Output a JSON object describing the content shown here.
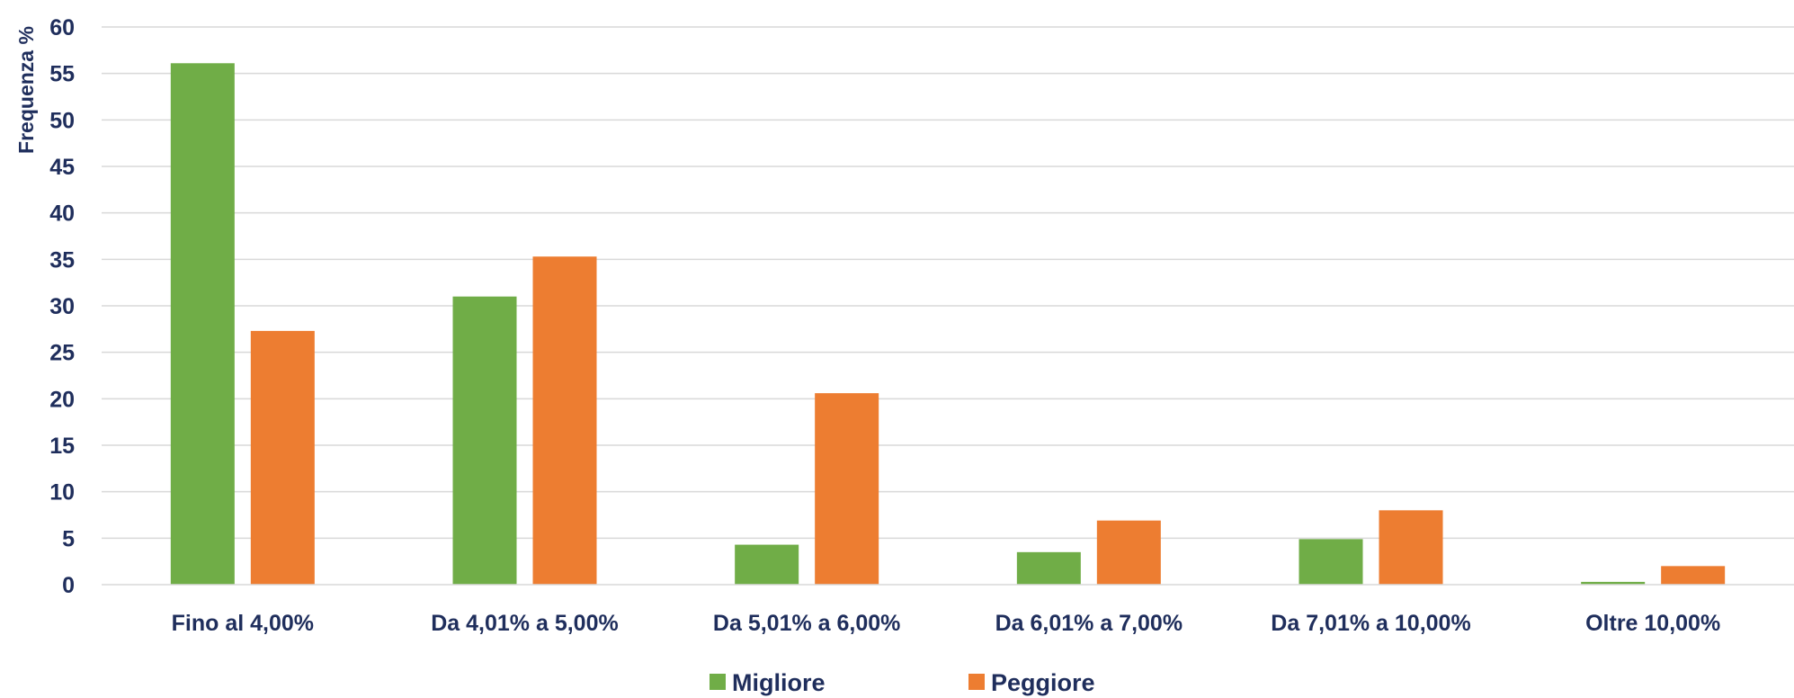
{
  "chart_data": {
    "type": "bar",
    "title": "",
    "xlabel": "",
    "ylabel": "Frequenza %",
    "ylim": [
      0,
      60
    ],
    "yticks": [
      0,
      5,
      10,
      15,
      20,
      25,
      30,
      35,
      40,
      45,
      50,
      55,
      60
    ],
    "grid": true,
    "legend_position": "bottom",
    "categories": [
      "Fino al 4,00%",
      "Da 4,01% a 5,00%",
      "Da 5,01% a 6,00%",
      "Da 6,01% a 7,00%",
      "Da 7,01% a 10,00%",
      "Oltre 10,00%"
    ],
    "series": [
      {
        "name": "Migliore",
        "color": "#70ad47",
        "values": [
          56.1,
          31.0,
          4.3,
          3.5,
          4.9,
          0.3
        ]
      },
      {
        "name": "Peggiore",
        "color": "#ed7d31",
        "values": [
          27.3,
          35.3,
          20.6,
          6.9,
          8.0,
          2.0
        ]
      }
    ]
  }
}
